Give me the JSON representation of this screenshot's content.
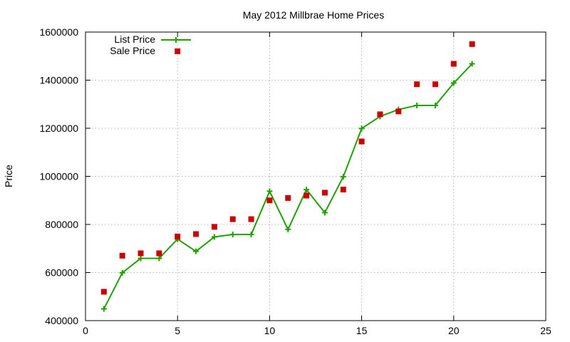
{
  "chart_data": {
    "type": "line",
    "title": "May 2012 Millbrae Home Prices",
    "xlabel": "",
    "ylabel": "Price",
    "xlim": [
      0,
      25
    ],
    "ylim": [
      400000,
      1600000
    ],
    "x_ticks": [
      0,
      5,
      10,
      15,
      20,
      25
    ],
    "x_tick_labels": [
      "0",
      "5",
      "10",
      "15",
      "20",
      "25"
    ],
    "y_ticks": [
      400000,
      600000,
      800000,
      1000000,
      1200000,
      1400000,
      1600000
    ],
    "y_tick_labels": [
      "400000",
      "600000",
      "800000",
      "1000000",
      "1200000",
      "1400000",
      "1600000"
    ],
    "grid": true,
    "legend_position": "top-left",
    "series": [
      {
        "name": "List Price",
        "style": "line-with-plus-markers",
        "color": "#22a000",
        "x": [
          1,
          2,
          3,
          4,
          5,
          6,
          7,
          8,
          9,
          10,
          11,
          12,
          13,
          14,
          15,
          16,
          17,
          18,
          19,
          20,
          21
        ],
        "y": [
          449000,
          599000,
          659000,
          659000,
          739000,
          688000,
          748000,
          758000,
          758000,
          938000,
          779000,
          945000,
          849000,
          998000,
          1199000,
          1249000,
          1278000,
          1295000,
          1295000,
          1388000,
          1468000
        ]
      },
      {
        "name": "Sale Price",
        "style": "square-markers",
        "color": "#cc0000",
        "x": [
          1,
          2,
          3,
          4,
          5,
          5,
          6,
          7,
          8,
          9,
          10,
          11,
          12,
          13,
          14,
          15,
          16,
          17,
          18,
          19,
          20,
          21
        ],
        "y": [
          520000,
          670000,
          680000,
          680000,
          750000,
          1520000,
          760000,
          790000,
          822000,
          822000,
          900000,
          910000,
          920000,
          932000,
          945000,
          1145000,
          1258000,
          1270000,
          1383000,
          1383000,
          1468000,
          1550000
        ]
      }
    ]
  }
}
